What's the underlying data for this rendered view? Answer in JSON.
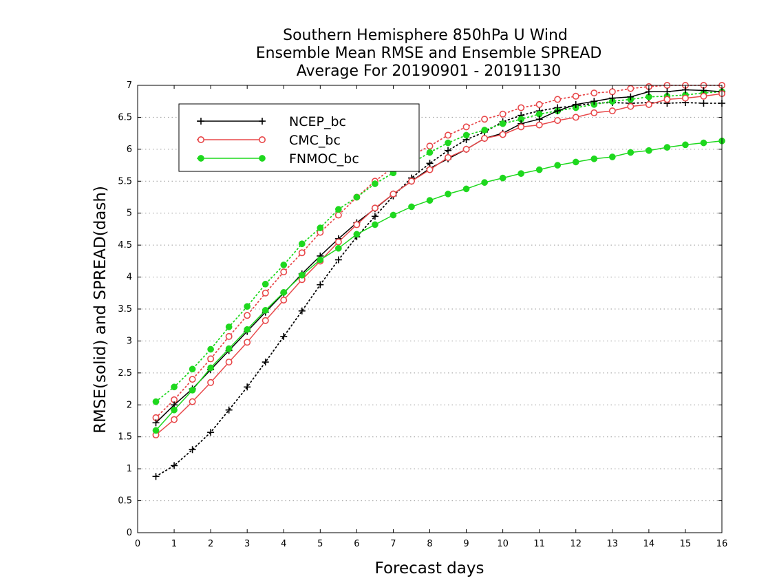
{
  "chart_data": {
    "type": "line",
    "title": [
      "Southern Hemisphere 850hPa U Wind",
      "Ensemble Mean RMSE and Ensemble SPREAD",
      "Average For 20190901 - 20191130"
    ],
    "xlabel": "Forecast days",
    "ylabel": "RMSE(solid) and SPREAD(dash)",
    "xlim": [
      0,
      16
    ],
    "ylim": [
      0,
      7
    ],
    "xticks": [
      "0",
      "1",
      "2",
      "3",
      "4",
      "5",
      "6",
      "7",
      "8",
      "9",
      "10",
      "11",
      "12",
      "13",
      "14",
      "15",
      "16"
    ],
    "yticks": [
      "0",
      "0.5",
      "1",
      "1.5",
      "2",
      "2.5",
      "3",
      "3.5",
      "4",
      "4.5",
      "5",
      "5.5",
      "6",
      "6.5",
      "7"
    ],
    "grid": "horizontal-dotted",
    "legend_position": "top-left",
    "x": [
      0.5,
      1.0,
      1.5,
      2.0,
      2.5,
      3.0,
      3.5,
      4.0,
      4.5,
      5.0,
      5.5,
      6.0,
      6.5,
      7.0,
      7.5,
      8.0,
      8.5,
      9.0,
      9.5,
      10.0,
      10.5,
      11.0,
      11.5,
      12.0,
      12.5,
      13.0,
      13.5,
      14.0,
      14.5,
      15.0,
      15.5,
      16.0
    ],
    "series": [
      {
        "name": "NCEP_bc",
        "color": "#000000",
        "marker": "plus",
        "rmse": [
          1.72,
          2.0,
          2.25,
          2.55,
          2.85,
          3.15,
          3.45,
          3.75,
          4.05,
          4.33,
          4.6,
          4.85,
          5.07,
          5.3,
          5.5,
          5.7,
          5.85,
          6.0,
          6.17,
          6.25,
          6.4,
          6.47,
          6.6,
          6.7,
          6.75,
          6.8,
          6.82,
          6.9,
          6.9,
          6.93,
          6.92,
          6.9
        ],
        "spread": [
          0.88,
          1.05,
          1.3,
          1.57,
          1.92,
          2.28,
          2.67,
          3.07,
          3.47,
          3.88,
          4.27,
          4.63,
          4.95,
          5.27,
          5.55,
          5.78,
          5.98,
          6.15,
          6.27,
          6.43,
          6.53,
          6.6,
          6.65,
          6.68,
          6.72,
          6.73,
          6.72,
          6.73,
          6.72,
          6.73,
          6.72,
          6.72
        ]
      },
      {
        "name": "CMC_bc",
        "color": "#e8484a",
        "marker": "circle-open",
        "rmse": [
          1.53,
          1.77,
          2.05,
          2.35,
          2.67,
          2.98,
          3.32,
          3.64,
          3.96,
          4.25,
          4.55,
          4.82,
          5.08,
          5.3,
          5.5,
          5.68,
          5.87,
          6.0,
          6.17,
          6.23,
          6.35,
          6.38,
          6.45,
          6.5,
          6.57,
          6.6,
          6.67,
          6.7,
          6.78,
          6.8,
          6.83,
          6.87
        ],
        "spread": [
          1.8,
          2.08,
          2.4,
          2.72,
          3.07,
          3.4,
          3.75,
          4.08,
          4.38,
          4.7,
          4.97,
          5.25,
          5.5,
          5.72,
          5.9,
          6.05,
          6.22,
          6.35,
          6.47,
          6.55,
          6.65,
          6.7,
          6.78,
          6.83,
          6.88,
          6.9,
          6.95,
          6.98,
          7.0,
          7.0,
          7.0,
          7.0
        ]
      },
      {
        "name": "FNMOC_bc",
        "color": "#1ed81e",
        "marker": "circle-filled",
        "rmse": [
          1.6,
          1.92,
          2.23,
          2.58,
          2.88,
          3.18,
          3.48,
          3.76,
          4.03,
          4.27,
          4.45,
          4.67,
          4.82,
          4.97,
          5.1,
          5.2,
          5.3,
          5.38,
          5.48,
          5.55,
          5.62,
          5.68,
          5.75,
          5.8,
          5.85,
          5.88,
          5.95,
          5.98,
          6.03,
          6.07,
          6.1,
          6.13
        ],
        "spread": [
          2.05,
          2.28,
          2.56,
          2.87,
          3.22,
          3.54,
          3.89,
          4.19,
          4.52,
          4.77,
          5.06,
          5.25,
          5.46,
          5.63,
          5.78,
          5.95,
          6.1,
          6.22,
          6.3,
          6.4,
          6.47,
          6.55,
          6.6,
          6.65,
          6.7,
          6.75,
          6.78,
          6.82,
          6.83,
          6.85,
          6.88,
          6.9
        ]
      }
    ]
  }
}
